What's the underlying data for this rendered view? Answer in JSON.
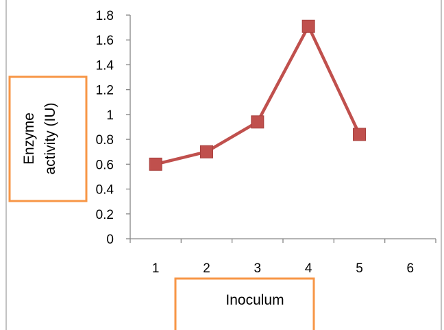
{
  "chart_data": {
    "type": "line",
    "title": "",
    "xlabel": "Inoculum",
    "ylabel": "Enzyme activity (IU)",
    "categories": [
      "1",
      "2",
      "3",
      "4",
      "5",
      "6"
    ],
    "series": [
      {
        "values": [
          0.6,
          0.7,
          0.94,
          1.71,
          0.84,
          null
        ]
      }
    ],
    "ylim": [
      0,
      1.8
    ],
    "yticks": [
      "0",
      "0.2",
      "0.4",
      "0.6",
      "0.8",
      "1",
      "1.2",
      "1.4",
      "1.6",
      "1.8"
    ],
    "grid": false,
    "legend": "none",
    "colors": {
      "series_line": "#c0504d",
      "marker": "#c0504d",
      "axis": "#868686",
      "label_box_border": "#f79646",
      "frame": "#868686"
    }
  },
  "ylabel_lines": [
    "Enzyme",
    "activity (IU)"
  ]
}
